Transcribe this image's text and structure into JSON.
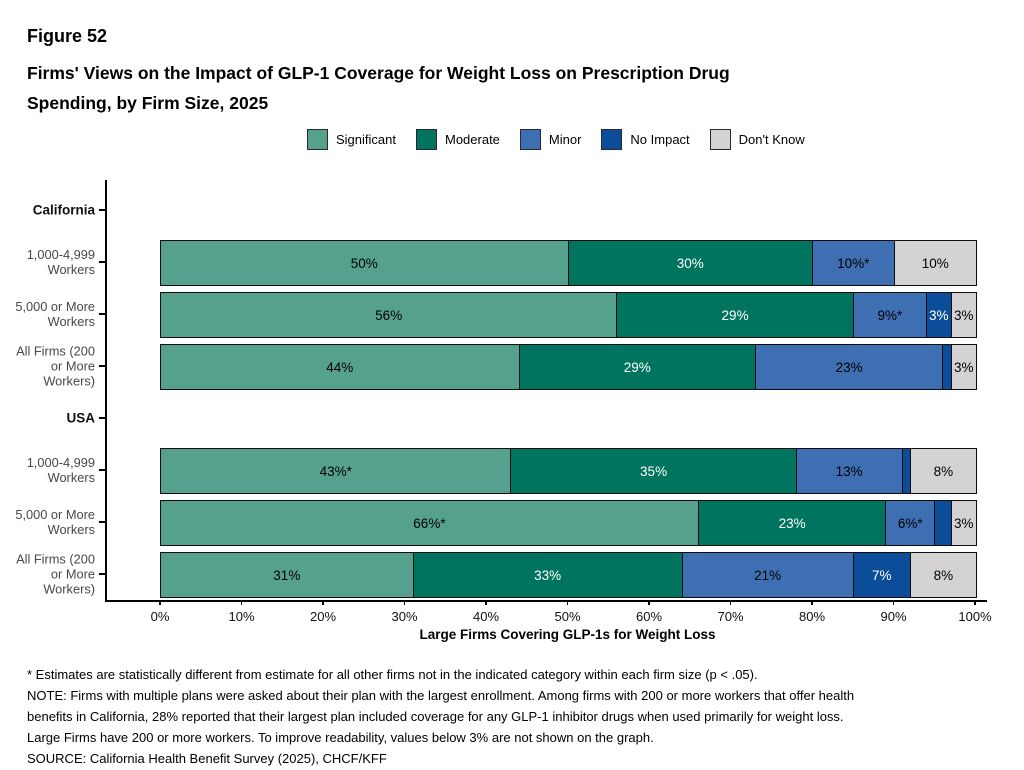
{
  "figure_number": "Figure 52",
  "title": "Firms' Views on the Impact of GLP-1 Coverage for Weight Loss on Prescription Drug\nSpending, by Firm Size, 2025",
  "chart_data": {
    "type": "bar",
    "orientation": "horizontal",
    "stacked": true,
    "xlabel": "Large Firms Covering GLP-1s for Weight Loss",
    "xlim": [
      0,
      100
    ],
    "x_ticks": [
      "0%",
      "10%",
      "20%",
      "30%",
      "40%",
      "50%",
      "60%",
      "70%",
      "80%",
      "90%",
      "100%"
    ],
    "legend_position": "top",
    "grid": false,
    "legend": [
      {
        "label": "Significant",
        "color": "#55a18e",
        "text_color": "#000000"
      },
      {
        "label": "Moderate",
        "color": "#00745e",
        "text_color": "#ffffff"
      },
      {
        "label": "Minor",
        "color": "#3d6fb2",
        "text_color": "#000000"
      },
      {
        "label": "No Impact",
        "color": "#0b4d99",
        "text_color": "#ffffff"
      },
      {
        "label": "Don't Know",
        "color": "#d4d2d2",
        "text_color": "#000000"
      }
    ],
    "rows": [
      {
        "label": "California",
        "header": true
      },
      {
        "label": "1,000-4,999\nWorkers",
        "values": [
          50,
          30,
          10,
          0,
          10
        ],
        "labels": [
          "50%",
          "30%",
          "10%*",
          "",
          "10%"
        ]
      },
      {
        "label": "5,000 or More\nWorkers",
        "values": [
          56,
          29,
          9,
          3,
          3
        ],
        "labels": [
          "56%",
          "29%",
          "9%*",
          "3%",
          "3%"
        ]
      },
      {
        "label": "All Firms (200\nor More\nWorkers)",
        "values": [
          44,
          29,
          23,
          1,
          3
        ],
        "labels": [
          "44%",
          "29%",
          "23%",
          "",
          "3%"
        ]
      },
      {
        "label": "USA",
        "header": true
      },
      {
        "label": "1,000-4,999\nWorkers",
        "values": [
          43,
          35,
          13,
          1,
          8
        ],
        "labels": [
          "43%*",
          "35%",
          "13%",
          "",
          "8%"
        ]
      },
      {
        "label": "5,000 or More\nWorkers",
        "values": [
          66,
          23,
          6,
          2,
          3
        ],
        "labels": [
          "66%*",
          "23%",
          "6%*",
          "",
          "3%"
        ]
      },
      {
        "label": "All Firms (200\nor More\nWorkers)",
        "values": [
          31,
          33,
          21,
          7,
          8
        ],
        "labels": [
          "31%",
          "33%",
          "21%",
          "7%",
          "8%"
        ]
      }
    ]
  },
  "footnotes": [
    "* Estimates are statistically different from estimate for all other firms not in the indicated category within each firm size (p < .05).",
    "NOTE: Firms with multiple plans were asked about their plan with the largest enrollment.  Among firms with 200 or more workers that offer health",
    "benefits in California, 28% reported that their largest plan included coverage for any GLP-1 inhibitor drugs when used primarily for weight loss.",
    "Large Firms have 200 or more workers.  To improve readability, values below 3% are not shown on the graph.",
    "SOURCE: California Health Benefit Survey (2025), CHCF/KFF"
  ]
}
